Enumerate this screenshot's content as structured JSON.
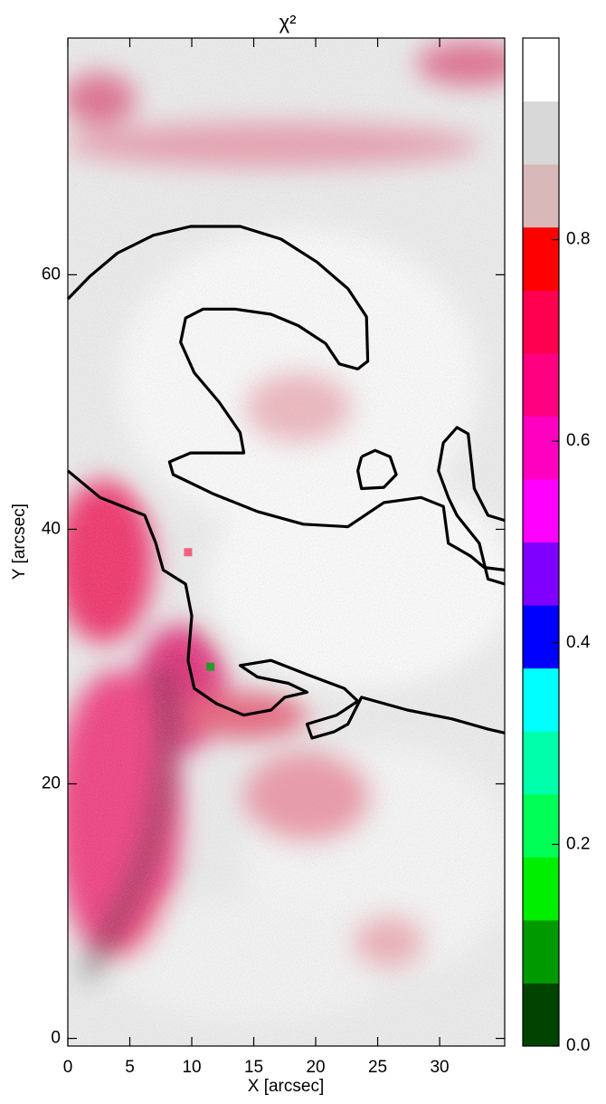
{
  "chart_data": {
    "type": "heatmap",
    "title": "χ²",
    "xlabel": "X [arcsec]",
    "ylabel": "Y [arcsec]",
    "xlim": [
      0,
      35.25
    ],
    "ylim": [
      -0.6,
      78.6
    ],
    "xticks": [
      0,
      5,
      10,
      15,
      20,
      25,
      30
    ],
    "yticks": [
      0,
      20,
      40,
      60
    ],
    "colorbar": {
      "lim": [
        0,
        1
      ],
      "ticks": [
        {
          "value": 0,
          "label": "0.0"
        },
        0.2,
        0.4,
        0.6,
        0.8
      ],
      "colors": [
        "#004400",
        "#009900",
        "#00ee00",
        "#00ff55",
        "#00ffaa",
        "#00ffff",
        "#0000ff",
        "#8000ff",
        "#ff00ff",
        "#ff00c0",
        "#ff0080",
        "#ff0050",
        "#ff0000",
        "#d8b8b8",
        "#d8d8d8",
        "#ffffff"
      ]
    },
    "contours": [
      {
        "x": [
          0,
          1.8,
          4.0,
          6.9,
          9.9,
          13.9,
          17.2,
          20.1,
          22.6,
          24.1,
          24.2,
          23.4,
          21.9,
          20.8,
          18.6,
          16.4,
          13.5,
          10.9,
          9.5,
          9.1,
          10.2,
          12.2,
          13.9,
          14.2,
          12.8,
          9.9,
          8.2,
          8.5,
          11.7,
          15.3,
          19.0,
          22.6,
          25.5,
          28.5,
          30.3,
          30.7,
          32.5,
          33.6,
          35.25
        ],
        "y": [
          58.1,
          59.9,
          61.7,
          63.1,
          63.8,
          63.8,
          62.8,
          61.0,
          58.9,
          56.7,
          53.2,
          52.6,
          53.0,
          54.6,
          56.0,
          56.9,
          57.3,
          57.3,
          56.6,
          54.7,
          52.3,
          50.0,
          47.6,
          46.0,
          46.0,
          46.0,
          45.3,
          44.3,
          42.8,
          41.4,
          40.4,
          40.2,
          42.1,
          42.5,
          41.8,
          38.9,
          37.9,
          37.0,
          36.8
        ]
      },
      {
        "x": [
          23.7,
          24.8,
          26.0,
          26.5,
          25.5,
          23.7,
          23.4,
          23.7
        ],
        "y": [
          45.7,
          46.2,
          45.7,
          44.3,
          43.3,
          43.2,
          44.6,
          45.7
        ]
      },
      {
        "x": [
          35.25,
          33.9,
          32.8,
          32.3,
          31.4,
          30.3,
          29.9,
          30.7,
          31.4,
          33.2,
          33.9,
          35.25
        ],
        "y": [
          40.7,
          41.1,
          43.2,
          47.5,
          48.0,
          46.8,
          44.6,
          42.5,
          41.1,
          38.9,
          36.1,
          35.7
        ]
      },
      {
        "x": [
          0,
          2.6,
          6.2,
          7.1,
          7.7,
          9.5,
          10.0,
          9.7,
          10.2,
          12.0,
          14.2,
          16.4,
          17.5,
          19.3,
          17.8,
          15.3,
          13.9,
          16.4,
          19.3,
          22.3,
          23.4,
          21.7,
          19.3,
          19.7,
          21.5,
          22.6,
          23.7,
          27.4,
          31.0,
          33.9,
          35.25
        ],
        "y": [
          44.6,
          42.5,
          41.1,
          38.9,
          36.8,
          35.7,
          33.2,
          29.7,
          27.5,
          26.3,
          25.4,
          25.8,
          26.8,
          27.2,
          27.9,
          28.4,
          29.3,
          29.7,
          28.6,
          27.5,
          26.5,
          25.4,
          24.7,
          23.6,
          24.1,
          24.7,
          26.8,
          25.8,
          25.1,
          24.3,
          24.0
        ]
      }
    ],
    "contour_color": "#000000",
    "markers": [
      {
        "x": 9.7,
        "y": 38.2,
        "color": "#f06080"
      },
      {
        "x": 11.5,
        "y": 29.2,
        "color": "#2a9a2a"
      }
    ]
  }
}
